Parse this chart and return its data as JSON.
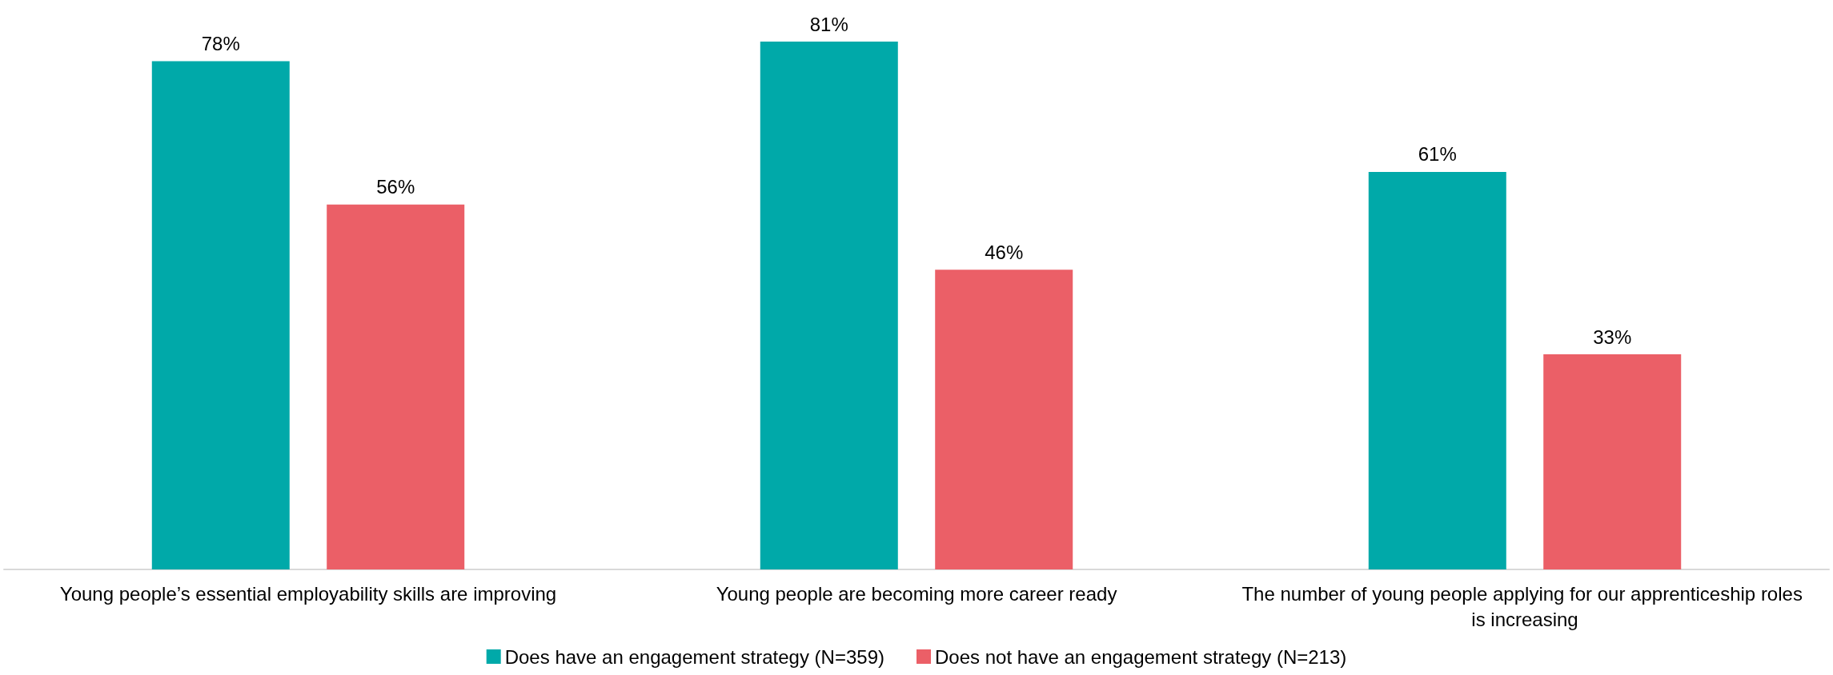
{
  "chart_data": {
    "type": "bar",
    "categories": [
      "Young people’s essential employability skills are improving",
      "Young people are becoming more career ready",
      "The number of young people applying for our apprenticeship roles is increasing"
    ],
    "series": [
      {
        "name": "Does have an engagement strategy (N=359)",
        "color": "#00a9a9",
        "values": [
          78,
          81,
          61
        ],
        "value_labels": [
          "78%",
          "81%",
          "61%"
        ]
      },
      {
        "name": "Does not have an engagement strategy (N=213)",
        "color": "#eb5f67",
        "values": [
          56,
          46,
          33
        ],
        "value_labels": [
          "56%",
          "46%",
          "33%"
        ]
      }
    ],
    "legend": "bottom"
  }
}
